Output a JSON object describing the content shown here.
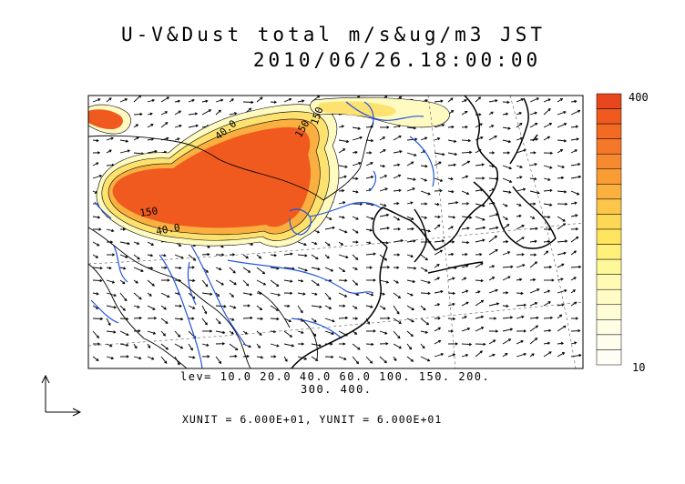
{
  "title": {
    "line1": "U-V&Dust total m/s&ug/m3 JST",
    "line2": "2010/06/26.18:00:00"
  },
  "contour_levels": {
    "line1": "lev= 10.0 20.0 40.0 60.0 100. 150. 200.",
    "line2": "300. 400."
  },
  "units_text": "XUNIT = 6.000E+01, YUNIT = 6.000E+01",
  "colorbar": {
    "max_label": "400",
    "min_label": "10",
    "colors": [
      "#e8461c",
      "#f05a1e",
      "#f36a22",
      "#f5782a",
      "#f78a2e",
      "#f99c34",
      "#fbb040",
      "#fdc64a",
      "#fed855",
      "#ffe460",
      "#fff07a",
      "#fff89a",
      "#fffbb4",
      "#fffcc6",
      "#fffdd6",
      "#fffde4",
      "#fffeee",
      "#fffef6"
    ]
  },
  "map_labels": [
    "150",
    "150",
    "40.0",
    "150",
    "40.0"
  ],
  "colors": {
    "dust_high": "#f05a1e",
    "dust_mid": "#fdd050",
    "dust_low": "#fff6a8",
    "rivers": "#2255dd",
    "coast": "#000000"
  }
}
